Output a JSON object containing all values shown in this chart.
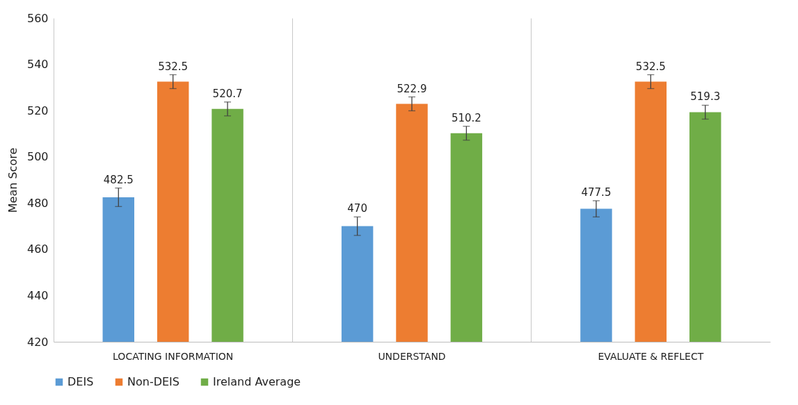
{
  "chart_data": {
    "type": "bar",
    "ylabel": "Mean Score",
    "categories": [
      "LOCATING INFORMATION",
      "UNDERSTAND",
      "EVALUATE & REFLECT"
    ],
    "series": [
      {
        "name": "DEIS",
        "color": "#5b9bd5",
        "values": [
          482.5,
          470,
          477.5
        ],
        "errors": [
          4,
          4,
          3.5
        ]
      },
      {
        "name": "Non-DEIS",
        "color": "#ed7d31",
        "values": [
          532.5,
          522.9,
          532.5
        ],
        "errors": [
          3,
          3,
          3
        ]
      },
      {
        "name": "Ireland Average",
        "color": "#70ad47",
        "values": [
          520.7,
          510.2,
          519.3
        ],
        "errors": [
          3,
          3,
          3
        ]
      }
    ],
    "ylim": [
      420,
      560
    ],
    "yticks": [
      420,
      440,
      460,
      480,
      500,
      520,
      540,
      560
    ],
    "grid": "x",
    "legend": "bottom",
    "data_labels": true
  }
}
